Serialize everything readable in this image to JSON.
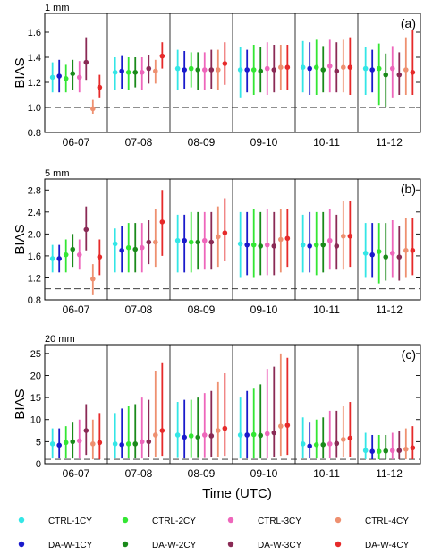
{
  "figure": {
    "xlabel": "Time  (UTC)",
    "ylabel": "BIAS",
    "categories": [
      "06-07",
      "07-08",
      "08-09",
      "09-10",
      "10-11",
      "11-12"
    ],
    "threshold_line": 1.0
  },
  "legend": [
    {
      "name": "CTRL-1CY",
      "color": "#33e6e6"
    },
    {
      "name": "CTRL-2CY",
      "color": "#33e633"
    },
    {
      "name": "CTRL-3CY",
      "color": "#ee66bb"
    },
    {
      "name": "CTRL-4CY",
      "color": "#ee9070"
    },
    {
      "name": "DA-W-1CY",
      "color": "#1a1acc"
    },
    {
      "name": "DA-W-2CY",
      "color": "#1a8a1a"
    },
    {
      "name": "DA-W-3CY",
      "color": "#8a2a55"
    },
    {
      "name": "DA-W-4CY",
      "color": "#e62a2a"
    }
  ],
  "chart_data": [
    {
      "type": "scatter",
      "panel_label": "(a)",
      "threshold": "1 mm",
      "ylabel": "BIAS",
      "ylim": [
        0.8,
        1.75
      ],
      "yticks": [
        0.8,
        1.0,
        1.2,
        1.4,
        1.6
      ],
      "categories": [
        "06-07",
        "07-08",
        "08-09",
        "09-10",
        "10-11",
        "11-12"
      ],
      "series": [
        {
          "name": "CTRL-1CY",
          "values": [
            1.24,
            1.28,
            1.31,
            1.3,
            1.32,
            1.31
          ],
          "low": [
            1.12,
            1.14,
            1.14,
            1.08,
            1.12,
            1.1
          ],
          "high": [
            1.36,
            1.4,
            1.46,
            1.48,
            1.53,
            1.48
          ]
        },
        {
          "name": "DA-W-1CY",
          "values": [
            1.25,
            1.29,
            1.3,
            1.3,
            1.31,
            1.3
          ],
          "low": [
            1.12,
            1.15,
            1.15,
            1.12,
            1.1,
            1.12
          ],
          "high": [
            1.38,
            1.41,
            1.45,
            1.46,
            1.52,
            1.46
          ]
        },
        {
          "name": "CTRL-2CY",
          "values": [
            1.23,
            1.28,
            1.31,
            1.3,
            1.32,
            1.31
          ],
          "low": [
            1.12,
            1.14,
            1.16,
            1.1,
            1.1,
            1.02
          ],
          "high": [
            1.34,
            1.4,
            1.44,
            1.5,
            1.54,
            1.51
          ]
        },
        {
          "name": "DA-W-2CY",
          "values": [
            1.27,
            1.28,
            1.3,
            1.29,
            1.3,
            1.26
          ],
          "low": [
            1.14,
            1.16,
            1.14,
            1.12,
            1.12,
            1.0
          ],
          "high": [
            1.38,
            1.4,
            1.44,
            1.48,
            1.49,
            1.43
          ]
        },
        {
          "name": "CTRL-3CY",
          "values": [
            1.24,
            1.28,
            1.3,
            1.31,
            1.33,
            1.31
          ],
          "low": [
            1.12,
            1.14,
            1.14,
            1.1,
            1.12,
            1.08
          ],
          "high": [
            1.37,
            1.4,
            1.44,
            1.52,
            1.54,
            1.49
          ]
        },
        {
          "name": "DA-W-3CY",
          "values": [
            1.36,
            1.31,
            1.3,
            1.3,
            1.29,
            1.26
          ],
          "low": [
            1.22,
            1.19,
            1.15,
            1.12,
            1.12,
            1.1
          ],
          "high": [
            1.56,
            1.42,
            1.46,
            1.5,
            1.52,
            1.44
          ]
        },
        {
          "name": "CTRL-4CY",
          "values": [
            0.99,
            1.29,
            1.3,
            1.32,
            1.32,
            1.3
          ],
          "low": [
            0.95,
            1.19,
            1.14,
            1.14,
            1.12,
            1.1
          ],
          "high": [
            1.06,
            1.38,
            1.46,
            1.5,
            1.54,
            1.56
          ]
        },
        {
          "name": "DA-W-4CY",
          "values": [
            1.16,
            1.41,
            1.35,
            1.32,
            1.32,
            1.28
          ],
          "low": [
            1.08,
            1.31,
            1.18,
            1.14,
            1.1,
            1.1
          ],
          "high": [
            1.26,
            1.52,
            1.52,
            1.5,
            1.56,
            1.62
          ]
        }
      ]
    },
    {
      "type": "scatter",
      "panel_label": "(b)",
      "threshold": "5 mm",
      "ylabel": "BIAS",
      "ylim": [
        0.8,
        3.0
      ],
      "yticks": [
        0.8,
        1.2,
        1.6,
        2.0,
        2.4,
        2.8
      ],
      "categories": [
        "06-07",
        "07-08",
        "08-09",
        "09-10",
        "10-11",
        "11-12"
      ],
      "series": [
        {
          "name": "CTRL-1CY",
          "values": [
            1.55,
            1.82,
            1.88,
            1.82,
            1.8,
            1.65
          ],
          "low": [
            1.3,
            1.3,
            1.3,
            1.2,
            1.3,
            1.2
          ],
          "high": [
            1.8,
            2.1,
            2.35,
            2.4,
            2.35,
            2.2
          ]
        },
        {
          "name": "DA-W-1CY",
          "values": [
            1.55,
            1.7,
            1.88,
            1.8,
            1.78,
            1.62
          ],
          "low": [
            1.3,
            1.3,
            1.3,
            1.25,
            1.3,
            1.2
          ],
          "high": [
            1.8,
            2.15,
            2.35,
            2.4,
            2.4,
            2.2
          ]
        },
        {
          "name": "CTRL-2CY",
          "values": [
            1.62,
            1.75,
            1.85,
            1.8,
            1.8,
            1.68
          ],
          "low": [
            1.3,
            1.3,
            1.3,
            1.2,
            1.25,
            1.1
          ],
          "high": [
            1.9,
            2.2,
            2.4,
            2.45,
            2.4,
            2.2
          ]
        },
        {
          "name": "DA-W-2CY",
          "values": [
            1.72,
            1.72,
            1.85,
            1.78,
            1.8,
            1.58
          ],
          "low": [
            1.4,
            1.3,
            1.35,
            1.25,
            1.3,
            1.15
          ],
          "high": [
            2.0,
            2.2,
            2.4,
            2.4,
            2.4,
            2.2
          ]
        },
        {
          "name": "CTRL-3CY",
          "values": [
            1.62,
            1.75,
            1.88,
            1.8,
            1.88,
            1.65
          ],
          "low": [
            1.35,
            1.3,
            1.35,
            1.25,
            1.35,
            1.2
          ],
          "high": [
            1.9,
            2.2,
            2.4,
            2.45,
            2.45,
            2.25
          ]
        },
        {
          "name": "DA-W-3CY",
          "values": [
            2.08,
            1.85,
            1.85,
            1.78,
            1.78,
            1.58
          ],
          "low": [
            1.7,
            1.45,
            1.35,
            1.25,
            1.35,
            1.15
          ],
          "high": [
            2.5,
            2.25,
            2.4,
            2.4,
            2.35,
            2.15
          ]
        },
        {
          "name": "CTRL-4CY",
          "values": [
            1.18,
            1.85,
            1.95,
            1.9,
            1.96,
            1.7
          ],
          "low": [
            0.9,
            1.4,
            1.4,
            1.3,
            1.35,
            1.2
          ],
          "high": [
            1.45,
            2.45,
            2.5,
            2.45,
            2.6,
            2.3
          ]
        },
        {
          "name": "DA-W-4CY",
          "values": [
            1.58,
            2.22,
            2.02,
            1.92,
            1.96,
            1.7
          ],
          "low": [
            1.25,
            1.6,
            1.5,
            1.4,
            1.4,
            1.25
          ],
          "high": [
            1.9,
            2.8,
            2.65,
            2.45,
            2.6,
            2.3
          ]
        }
      ]
    },
    {
      "type": "scatter",
      "panel_label": "(c)",
      "threshold": "20 mm",
      "ylabel": "BIAS",
      "ylim": [
        0,
        27
      ],
      "yticks": [
        0,
        5,
        10,
        15,
        20,
        25
      ],
      "categories": [
        "06-07",
        "07-08",
        "08-09",
        "09-10",
        "10-11",
        "11-12"
      ],
      "series": [
        {
          "name": "CTRL-1CY",
          "values": [
            4.5,
            4.5,
            6.5,
            6.5,
            4.5,
            3.0
          ],
          "low": [
            1.2,
            1.2,
            1.3,
            1.2,
            1.2,
            1.0
          ],
          "high": [
            8.0,
            11.5,
            14.0,
            15.0,
            10.5,
            7.0
          ]
        },
        {
          "name": "DA-W-1CY",
          "values": [
            4.2,
            4.3,
            6.0,
            6.5,
            4.0,
            2.8
          ],
          "low": [
            1.2,
            1.2,
            1.2,
            1.2,
            1.2,
            1.0
          ],
          "high": [
            8.0,
            12.5,
            14.5,
            16.5,
            9.5,
            6.5
          ]
        },
        {
          "name": "CTRL-2CY",
          "values": [
            4.8,
            4.5,
            6.3,
            6.6,
            4.3,
            2.8
          ],
          "low": [
            1.2,
            1.2,
            1.3,
            1.2,
            1.2,
            1.0
          ],
          "high": [
            8.5,
            13.0,
            14.5,
            17.0,
            10.0,
            6.5
          ]
        },
        {
          "name": "DA-W-2CY",
          "values": [
            5.0,
            4.5,
            6.0,
            6.4,
            4.3,
            2.9
          ],
          "low": [
            1.2,
            1.2,
            1.3,
            1.2,
            1.2,
            1.0
          ],
          "high": [
            9.5,
            13.5,
            15.0,
            18.0,
            10.5,
            6.5
          ]
        },
        {
          "name": "CTRL-3CY",
          "values": [
            5.2,
            5.0,
            6.5,
            6.8,
            4.5,
            3.0
          ],
          "low": [
            1.2,
            1.2,
            1.3,
            1.2,
            1.2,
            1.0
          ],
          "high": [
            10.0,
            15.0,
            16.0,
            21.5,
            12.0,
            7.0
          ]
        },
        {
          "name": "DA-W-3CY",
          "values": [
            7.5,
            5.0,
            6.3,
            7.0,
            4.6,
            3.0
          ],
          "low": [
            2.0,
            1.5,
            1.5,
            1.5,
            1.3,
            1.0
          ],
          "high": [
            13.5,
            14.5,
            16.5,
            22.0,
            12.0,
            7.5
          ]
        },
        {
          "name": "CTRL-4CY",
          "values": [
            4.5,
            6.5,
            7.5,
            8.5,
            5.5,
            3.3
          ],
          "low": [
            1.0,
            1.5,
            1.5,
            1.8,
            1.5,
            1.0
          ],
          "high": [
            10.0,
            21.0,
            18.5,
            25.0,
            13.0,
            8.0
          ]
        },
        {
          "name": "DA-W-4CY",
          "values": [
            4.8,
            7.5,
            8.0,
            8.7,
            5.8,
            3.6
          ],
          "low": [
            1.0,
            1.8,
            1.8,
            2.0,
            1.5,
            1.0
          ],
          "high": [
            11.5,
            23.0,
            20.5,
            24.0,
            14.0,
            8.5
          ]
        }
      ]
    }
  ]
}
